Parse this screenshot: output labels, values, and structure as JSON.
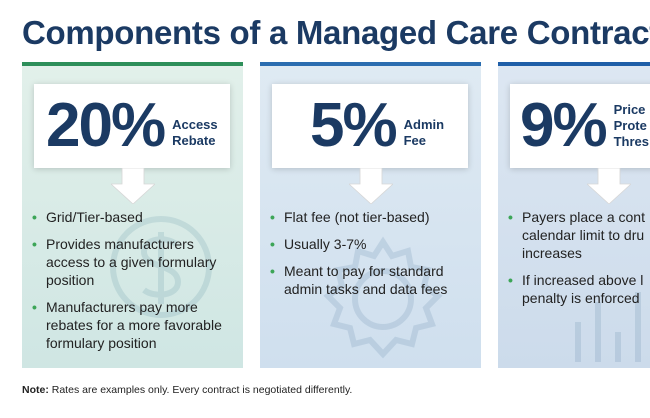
{
  "title": "Components of a Managed Care Contract",
  "colors": {
    "title": "#1b3a63",
    "bullet": "#3ca557",
    "card1_bar": "#2e8f5a",
    "card2_bar": "#2b6db0",
    "card3_bar": "#1f5fa8"
  },
  "cards": [
    {
      "percent": "20%",
      "label_line1": "Access",
      "label_line2": "Rebate",
      "icon": "dollar-circle-icon",
      "bullets": [
        "Grid/Tier-based",
        "Provides manufacturers access to a given formulary position",
        "Manufacturers pay more rebates for a more favorable formulary position"
      ]
    },
    {
      "percent": "5%",
      "label_line1": "Admin",
      "label_line2": "Fee",
      "icon": "gear-icon",
      "bullets": [
        "Flat fee (not tier-based)",
        "Usually 3-7%",
        "Meant to pay for standard admin tasks and data fees"
      ]
    },
    {
      "percent": "9%",
      "label_line1": "Price",
      "label_line2": "Prote",
      "label_line3": "Thres",
      "icon": "chart-icon",
      "bullets": [
        "Payers place a cont calendar limit to dru increases",
        "If increased above l penalty is enforced"
      ]
    }
  ],
  "note": {
    "label": "Note:",
    "text": " Rates are examples only. Every contract is negotiated differently."
  }
}
